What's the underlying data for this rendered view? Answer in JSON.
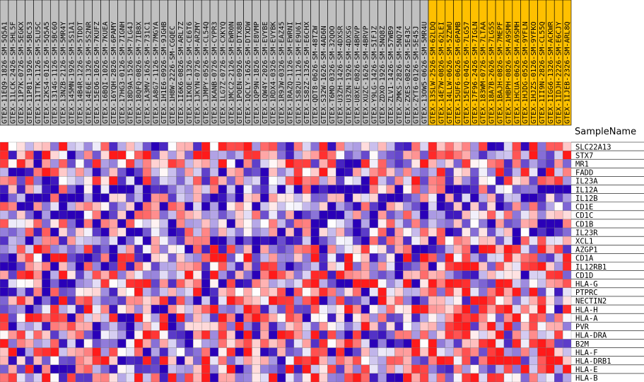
{
  "chart_data": {
    "type": "heatmap",
    "row_header": "SampleName",
    "columns": [
      "GTEX-11EQ9-1826-SM-5Q5A1",
      "GTEX-11LCK-2426-SM-5HL5F",
      "GTEX-11P7K-0726-SM-5EGKX",
      "GTEX-11P81-1926-SM-5BC53",
      "GTEX-11TTK-1126-SM-5LU5C",
      "GTEX-12KS4-0126-SM-5Q5A5",
      "GTEX-1314G-1126-SM-5BC6O",
      "GTEX-13NZB-2126-SM-5MR4Y",
      "GTEX-145MN-1926-SM-5S1A1",
      "GTEX-14B4R-1226-SM-5TDDT",
      "GTEX-14E6E-1326-SM-5S2NR",
      "GTEX-15EO6-1026-SM-7KUFZ",
      "GTEX-16BQI-1026-SM-7KUEA",
      "GTEX-16YQH-2826-SM-6PAMY",
      "GTEX-17HG3-0126-SM-7IGNH",
      "GTEX-18D9A-1526-SM-7LG4J",
      "GTEX-18QFQ-0826-SM-7IB8X",
      "GTEX-1A3MV-1626-SM-731C1",
      "GTEX-1A8G7-1126-SM-7MGYA",
      "GTEX-1H1E6-0926-SM-9JGHB",
      "GTEX-1H8W-2226-SM-CGQEC",
      "GTEX-1I6K6-0826-SM-ARL7Z",
      "GTEX-1IKOE-1326-SM-CE6T6",
      "GTEX-1JKYN-0726-SM-ARZMY",
      "GTEX-1JMPY-0526-SM-CL54Q",
      "GTEX-1KANB-0726-SM-CYPR3",
      "GTEX-1LG7Z-0726-SM-CXKYQ",
      "GTEX-1MCC2-2126-SM-EWR0N",
      "GTEX-1POEN-0926-SM-DTX8B",
      "GTEX-1QCLY-1626-SM-DTXDW",
      "GTEX-1QP9N-1826-SM-E8VMP",
      "GTEX-1QW4Y-2026-SM-EVYBE",
      "GTEX-1RDX4-0326-SM-EVYBK",
      "GTEX-1R9JW-0326-SM-EAZ45",
      "GTEX-1RAZQ-1126-SM-EWRNI",
      "GTEX-1S82U-1126-SM-E9U6I",
      "GTEX-1S82Z-1326-SM-E6CHX",
      "GTEX-QDT8-0626-SM-48TZW",
      "GTEX-S32W-1626-SM-4AD6N",
      "GTEX-T6MO-0326-SM-32QOO",
      "GTEX-U3ZH-1426-SM-4DXSR",
      "GTEX-U3ZN-1926-SM-4DXSG",
      "GTEX-U8XE-0826-SM-4BRVP",
      "GTEX-XUZC-1626-SM-4BRVP",
      "GTEX-Y9LG-1426-SM-5IFJZ",
      "GTEX-ZDXO-1926-SM-5NQ8Z",
      "GTEX-ZLV1-1426-SM-57WB9",
      "GTEX-ZMKS-2826-SM-5NQ74",
      "GTEX-ZXES-0826-SM-5E43C",
      "GTEX-ZYT6-0126-SM-5E45J",
      "GTEX-13OW5-0626-SM-5MR4U",
      "GTEX-13SLW-2526-SM-62LDQ",
      "GTEX-14E7W-0826-SM-62LEI",
      "GTEX-14LLW-0626-SM-5ZZWU",
      "GTEX-15UF6-0626-SM-6PAMB",
      "GTEX-15EVQ-0426-SM-7LG57",
      "GTEX-17F96-2426-SM-7IGLN",
      "GTEX-183WM-0726-SM-7LTAA",
      "GTEX-18A7B-2626-SM-7LG5S",
      "GTEX-1BAJH-0826-SM-7MEPF",
      "GTEX-1HBPH-0826-SM-A9SMH",
      "GTEX-1HCUA-0626-SM-A9SMH",
      "GTEX-1HJDG-0526-SM-9YFLN",
      "GTEX-1HJZS-0126-SM-9YFKO",
      "GTEX-1II9N-2826-SM-CL55Q",
      "GTEX-1IGG6-1326-SM-ACKWR",
      "GTEX-1IDJH-2226-SM-E6CJY",
      "GTEX-1IJEB-2326-SM-ARL8Q"
    ],
    "highlighted_from_column": 51,
    "rows": [
      "SLC22A13",
      "STX7",
      "MR1",
      "FADD",
      "IL23A",
      "IL12A",
      "IL12B",
      "CD1E",
      "CD1C",
      "CD1B",
      "IL23R",
      "XCL1",
      "AZGP1",
      "CD1A",
      "IL12RB1",
      "CD1D",
      "HLA-G",
      "PTPRC",
      "NECTIN2",
      "HLA-H",
      "HLA-A",
      "PVR",
      "HLA-DRA",
      "B2M",
      "HLA-F",
      "HLA-DRB1",
      "HLA-E",
      "HLA-B"
    ],
    "value_range": [
      -2,
      2
    ],
    "colors": {
      "low": "#2a00b8",
      "mid": "#ffffff",
      "high": "#ff1a1a",
      "highlight_label_bg": "#ffc000",
      "label_bg": "#c0c0c0"
    }
  }
}
